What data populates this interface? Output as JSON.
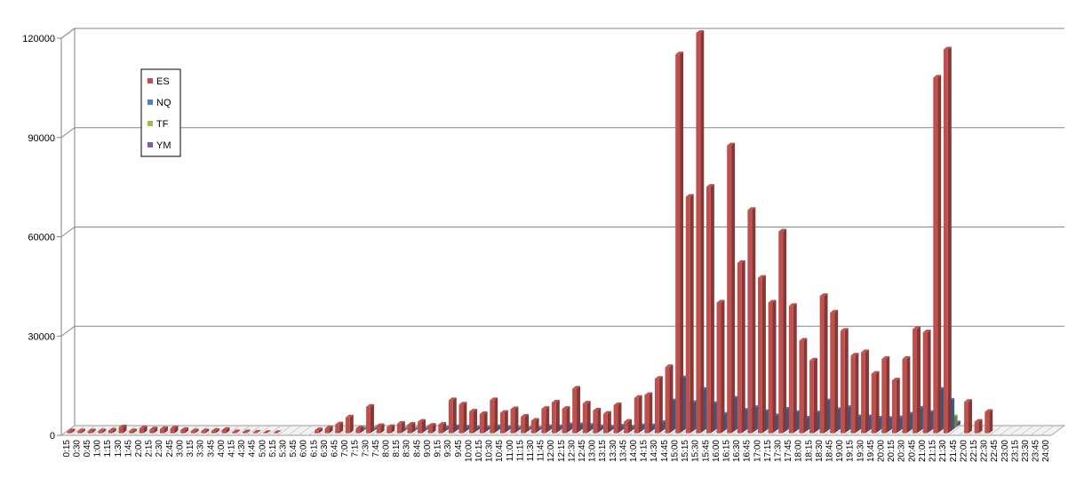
{
  "chart_data": {
    "type": "bar",
    "ylim": [
      0,
      120000
    ],
    "y_ticks": [
      "0",
      "30000",
      "60000",
      "90000",
      "120000"
    ],
    "grid": true,
    "legend_position": "top-left",
    "categories": [
      "0:15",
      "0:30",
      "0:45",
      "1:00",
      "1:15",
      "1:30",
      "1:45",
      "2:00",
      "2:15",
      "2:30",
      "2:45",
      "3:00",
      "3:15",
      "3:30",
      "3:45",
      "4:00",
      "4:15",
      "4:30",
      "4:45",
      "5:00",
      "5:15",
      "5:30",
      "5:45",
      "6:00",
      "6:15",
      "6:30",
      "6:45",
      "7:00",
      "7:15",
      "7:30",
      "7:45",
      "8:00",
      "8:15",
      "8:30",
      "8:45",
      "9:00",
      "9:15",
      "9:30",
      "9:45",
      "10:00",
      "10:15",
      "10:30",
      "10:45",
      "11:00",
      "11:15",
      "11:30",
      "11:45",
      "12:00",
      "12:15",
      "12:30",
      "12:45",
      "13:00",
      "13:15",
      "13:30",
      "13:45",
      "14:00",
      "14:15",
      "14:30",
      "14:45",
      "15:00",
      "15:15",
      "15:30",
      "15:45",
      "16:00",
      "16:15",
      "16:30",
      "16:45",
      "17:00",
      "17:15",
      "17:30",
      "17:45",
      "18:00",
      "18:15",
      "18:30",
      "18:45",
      "19:00",
      "19:15",
      "19:30",
      "19:45",
      "20:00",
      "20:15",
      "20:30",
      "20:45",
      "21:00",
      "21:15",
      "21:30",
      "21:45",
      "22:00",
      "22:15",
      "22:30",
      "22:45",
      "23:00",
      "23:15",
      "23:30",
      "23:45",
      "24:00"
    ],
    "series": [
      {
        "name": "YM",
        "color": "#7b5fa8",
        "values": [
          0,
          0,
          0,
          0,
          0,
          0,
          0,
          0,
          0,
          0,
          0,
          0,
          0,
          0,
          0,
          0,
          0,
          0,
          0,
          0,
          0,
          0,
          0,
          0,
          0,
          0,
          0,
          0,
          100,
          100,
          0,
          0,
          100,
          100,
          100,
          0,
          200,
          200,
          200,
          200,
          200,
          200,
          200,
          100,
          100,
          100,
          200,
          200,
          200,
          200,
          200,
          200,
          200,
          200,
          200,
          200,
          200,
          300,
          600,
          1500,
          1000,
          1200,
          800,
          900,
          900,
          800,
          900,
          800,
          800,
          700,
          800,
          600,
          500,
          700,
          500,
          500,
          400,
          400,
          400,
          500,
          400,
          400,
          700,
          900,
          1100,
          1000,
          0,
          0,
          0,
          0,
          0,
          0,
          0,
          0,
          0,
          0
        ]
      },
      {
        "name": "TF",
        "color": "#9bbb59",
        "values": [
          0,
          0,
          0,
          0,
          0,
          0,
          0,
          0,
          0,
          0,
          0,
          0,
          0,
          0,
          0,
          0,
          0,
          0,
          0,
          0,
          0,
          0,
          0,
          0,
          0,
          0,
          0,
          0,
          100,
          100,
          0,
          0,
          100,
          100,
          100,
          0,
          200,
          300,
          300,
          300,
          300,
          300,
          300,
          200,
          200,
          200,
          300,
          300,
          400,
          400,
          300,
          300,
          300,
          300,
          300,
          400,
          400,
          500,
          2000,
          8200,
          5500,
          6000,
          4000,
          3500,
          4500,
          3200,
          3000,
          2600,
          3000,
          3500,
          2500,
          2000,
          2000,
          2200,
          1800,
          1700,
          1500,
          1500,
          1500,
          1500,
          1700,
          2200,
          3000,
          4000,
          7000,
          3500,
          0,
          0,
          0,
          0,
          0,
          0,
          0,
          0,
          0,
          0
        ]
      },
      {
        "name": "NQ",
        "color": "#4f81bd",
        "values": [
          0,
          0,
          0,
          0,
          0,
          0,
          0,
          0,
          0,
          0,
          0,
          0,
          0,
          0,
          0,
          0,
          0,
          0,
          0,
          0,
          0,
          0,
          0,
          0,
          0,
          0,
          0,
          0,
          300,
          400,
          0,
          0,
          300,
          300,
          500,
          0,
          800,
          1200,
          1100,
          900,
          900,
          1200,
          1000,
          700,
          600,
          600,
          1200,
          1200,
          1800,
          1800,
          1600,
          1200,
          1100,
          1400,
          1100,
          1500,
          1500,
          2500,
          9000,
          16000,
          8500,
          12500,
          8200,
          5000,
          9800,
          6200,
          7000,
          5800,
          4500,
          6500,
          5500,
          3800,
          5400,
          9000,
          6400,
          7000,
          4200,
          4200,
          3800,
          3700,
          3900,
          5000,
          6800,
          5500,
          12500,
          9200,
          0,
          0,
          0,
          0,
          0,
          0,
          0,
          0,
          0,
          0
        ]
      },
      {
        "name": "ES",
        "color": "#c0504d",
        "values": [
          600,
          600,
          600,
          600,
          800,
          1800,
          600,
          1500,
          1200,
          1300,
          1500,
          1000,
          600,
          600,
          700,
          1000,
          300,
          300,
          200,
          100,
          100,
          0,
          0,
          0,
          900,
          1500,
          2700,
          4800,
          1500,
          8000,
          2200,
          1900,
          2900,
          2600,
          3500,
          2300,
          2600,
          10000,
          8700,
          6600,
          5800,
          10000,
          6200,
          7300,
          5000,
          3800,
          7400,
          9300,
          7400,
          13500,
          9000,
          6900,
          5900,
          8500,
          3500,
          10700,
          11600,
          16500,
          20000,
          114500,
          71500,
          121000,
          74500,
          39500,
          87000,
          51500,
          67500,
          47000,
          39500,
          61000,
          38500,
          28000,
          22000,
          41500,
          36500,
          31000,
          23500,
          24500,
          18000,
          22500,
          16000,
          22500,
          31500,
          30500,
          107500,
          116000,
          0,
          9500,
          3500,
          6500,
          0,
          0,
          0,
          0,
          0,
          0
        ]
      }
    ]
  }
}
